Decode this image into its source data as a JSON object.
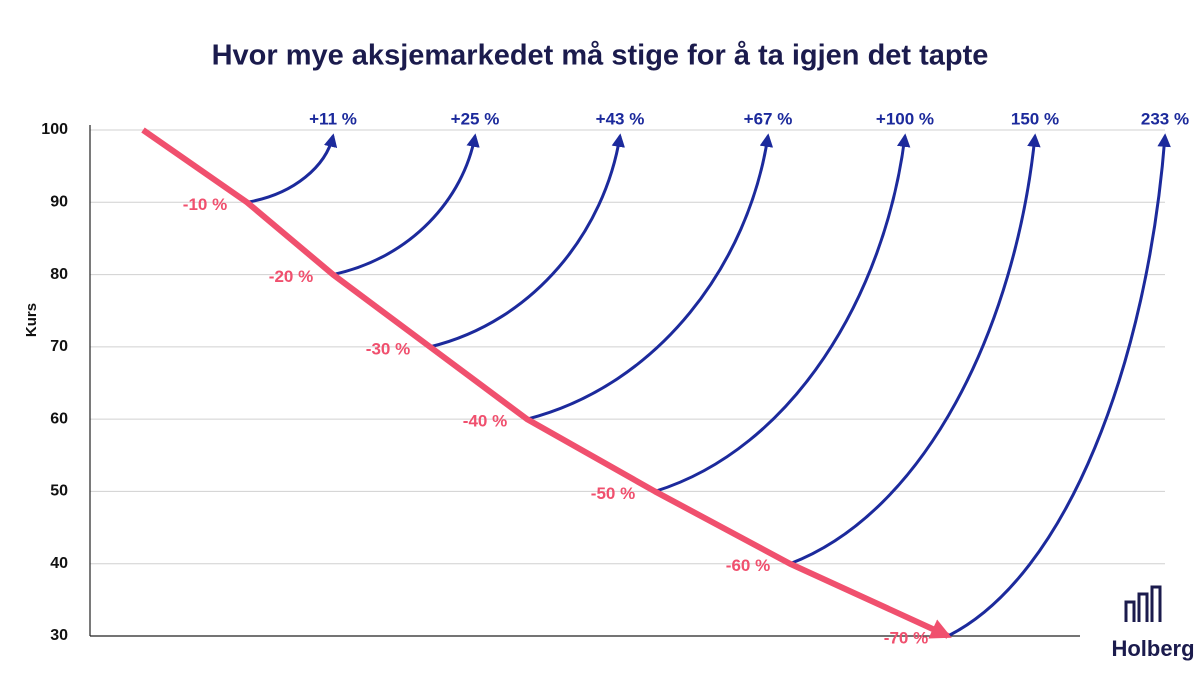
{
  "chart_data": {
    "type": "line",
    "title": "Hvor mye aksjemarkedet må stige for å ta igjen det tapte",
    "ylabel": "Kurs",
    "ylim": [
      30,
      100
    ],
    "yticks": [
      30,
      40,
      50,
      60,
      70,
      80,
      90,
      100
    ],
    "grid": true,
    "series": [
      {
        "color": "#f0506e",
        "values": [
          100,
          90,
          80,
          70,
          60,
          50,
          40,
          30
        ]
      }
    ],
    "drops": {
      "color": "#f0506e",
      "values": [
        -10,
        -20,
        -30,
        -40,
        -50,
        -60,
        -70
      ],
      "value_labels": [
        "-10 %",
        "-20 %",
        "-30 %",
        "-40 %",
        "-50 %",
        "-60 %",
        "-70 %"
      ]
    },
    "recoveries": {
      "color": "#1c2a9c",
      "values": [
        11,
        25,
        43,
        67,
        100,
        150,
        233
      ],
      "value_labels": [
        "+11 %",
        "+25 %",
        "+43 %",
        "+67 %",
        "+100 %",
        "150 %",
        "233 %"
      ]
    },
    "logo": "Holberg"
  }
}
